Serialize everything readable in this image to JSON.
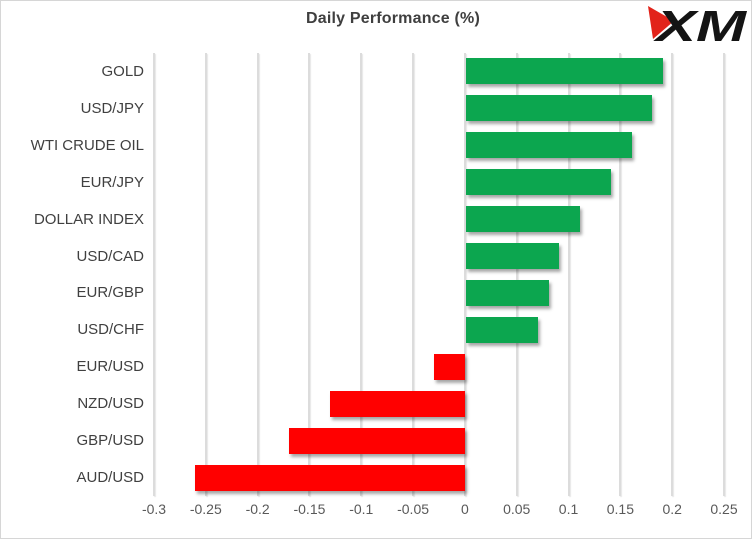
{
  "chart": {
    "title": "Daily Performance (%)",
    "logo_text": "XM",
    "logo_red": "#e2231a",
    "logo_black": "#141414"
  },
  "chart_data": {
    "type": "bar",
    "orientation": "horizontal",
    "title": "Daily Performance (%)",
    "categories": [
      "GOLD",
      "USD/JPY",
      "WTI CRUDE OIL",
      "EUR/JPY",
      "DOLLAR INDEX",
      "USD/CAD",
      "EUR/GBP",
      "USD/CHF",
      "EUR/USD",
      "NZD/USD",
      "GBP/USD",
      "AUD/USD"
    ],
    "values": [
      0.19,
      0.18,
      0.16,
      0.14,
      0.11,
      0.09,
      0.08,
      0.07,
      -0.03,
      -0.13,
      -0.17,
      -0.26
    ],
    "xlim": [
      -0.3,
      0.25
    ],
    "x_ticks": [
      -0.3,
      -0.25,
      -0.2,
      -0.15,
      -0.1,
      -0.05,
      0,
      0.05,
      0.1,
      0.15,
      0.2,
      0.25
    ],
    "x_tick_labels": [
      "-0.3",
      "-0.25",
      "-0.2",
      "-0.15",
      "-0.1",
      "-0.05",
      "0",
      "0.05",
      "0.1",
      "0.15",
      "0.2",
      "0.25"
    ],
    "positive_color": "#0ca64f",
    "negative_color": "#ff0000",
    "gridline_color": "#dcdcdc",
    "grid": true,
    "legend": false,
    "ylabel": "",
    "xlabel": ""
  }
}
